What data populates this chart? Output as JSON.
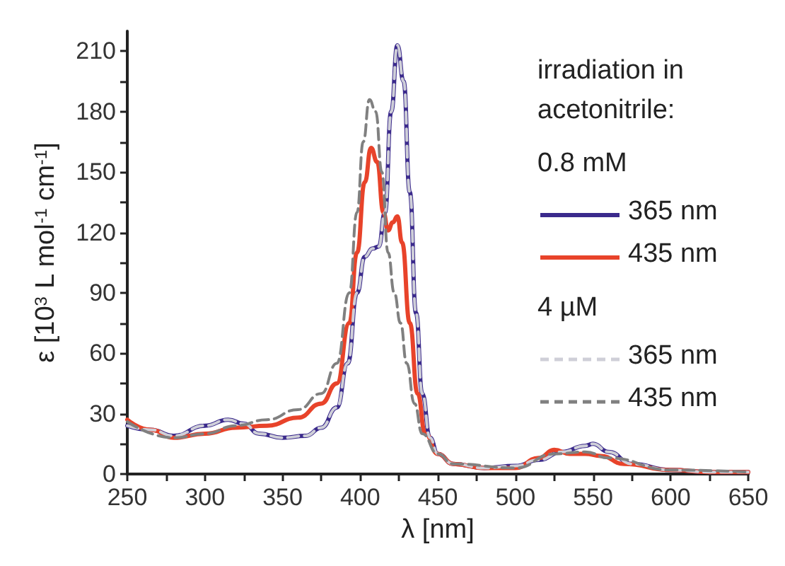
{
  "chart_data": {
    "type": "line",
    "xlabel": "λ [nm]",
    "ylabel": "ε [10$^{3}$ L mol$^{-1}$ cm$^{-1}$]",
    "legend_title": "irradiation in acetonitrile:",
    "annotations": [
      "0.8 mM",
      "4 µM"
    ],
    "legend": "right",
    "grid": false,
    "xlim": [
      250,
      650
    ],
    "xticks": [
      250,
      {
        "value": 275,
        "label": null
      },
      300,
      {
        "value": 325,
        "label": null
      },
      350,
      {
        "value": 375,
        "label": null
      },
      400,
      {
        "value": 425,
        "label": null
      },
      450,
      {
        "value": 475,
        "label": null
      },
      500,
      {
        "value": 525,
        "label": null
      },
      550,
      {
        "value": 575,
        "label": null
      },
      600,
      {
        "value": 625,
        "label": null
      },
      650
    ],
    "ylim": [
      0,
      220
    ],
    "yticks": [
      0,
      {
        "value": 15,
        "label": null
      },
      30,
      {
        "value": 45,
        "label": null
      },
      60,
      {
        "value": 75,
        "label": null
      },
      90,
      {
        "value": 105,
        "label": null
      },
      120,
      {
        "value": 135,
        "label": null
      },
      150,
      {
        "value": 165,
        "label": null
      },
      180,
      {
        "value": 195,
        "label": null
      },
      210
    ],
    "series": [
      {
        "name": "365 nm",
        "color": "#3b2a8c",
        "line_style": "solid",
        "x": [
          250,
          265,
          280,
          300,
          315,
          325,
          335,
          350,
          365,
          375,
          385,
          392,
          398,
          403,
          408,
          412,
          416,
          420,
          424,
          428,
          432,
          436,
          440,
          445,
          450,
          460,
          480,
          500,
          515,
          530,
          545,
          550,
          560,
          575,
          600,
          625,
          650
        ],
        "values": [
          24,
          22,
          19,
          24,
          27,
          25,
          20,
          18,
          19,
          23,
          33,
          55,
          90,
          108,
          112,
          113,
          130,
          180,
          213,
          195,
          140,
          80,
          40,
          18,
          10,
          5,
          3,
          4,
          7,
          11,
          14,
          15,
          11,
          5,
          2,
          1,
          1
        ]
      },
      {
        "name": "435 nm",
        "color": "#e8432a",
        "line_style": "solid",
        "x": [
          250,
          265,
          280,
          300,
          320,
          340,
          360,
          375,
          385,
          393,
          398,
          403,
          407,
          411,
          415,
          418,
          421,
          424,
          427,
          432,
          437,
          442,
          450,
          460,
          480,
          500,
          515,
          525,
          535,
          545,
          555,
          570,
          600,
          625,
          650
        ],
        "values": [
          27,
          22,
          18,
          20,
          23,
          24,
          28,
          35,
          45,
          75,
          110,
          145,
          162,
          155,
          130,
          121,
          125,
          128,
          115,
          75,
          40,
          20,
          10,
          5,
          3,
          3,
          8,
          12,
          10,
          10,
          9,
          5,
          2,
          1,
          1
        ]
      },
      {
        "name": "365 nm",
        "color": "#cfcfd8",
        "line_style": "dashed",
        "x": [
          250,
          265,
          280,
          300,
          315,
          325,
          335,
          350,
          365,
          375,
          385,
          392,
          398,
          403,
          408,
          412,
          416,
          420,
          424,
          428,
          432,
          436,
          440,
          445,
          450,
          460,
          480,
          500,
          515,
          530,
          545,
          550,
          560,
          575,
          600,
          625,
          650
        ],
        "values": [
          24,
          22,
          19,
          24,
          27,
          25,
          20,
          18,
          19,
          23,
          33,
          55,
          90,
          108,
          112,
          113,
          130,
          180,
          213,
          195,
          140,
          80,
          40,
          18,
          10,
          5,
          3,
          4,
          7,
          11,
          14,
          15,
          11,
          5,
          2,
          1,
          1
        ]
      },
      {
        "name": "435 nm",
        "color": "#808080",
        "line_style": "dashed",
        "x": [
          250,
          280,
          300,
          320,
          340,
          360,
          375,
          385,
          393,
          398,
          402,
          406,
          410,
          414,
          418,
          422,
          426,
          430,
          435,
          440,
          450,
          460,
          500,
          525,
          545,
          560,
          600,
          650
        ],
        "values": [
          26,
          18,
          20,
          24,
          27,
          32,
          40,
          55,
          90,
          130,
          165,
          186,
          180,
          150,
          110,
          90,
          75,
          55,
          35,
          20,
          10,
          5,
          3,
          10,
          11,
          8,
          2,
          1
        ]
      }
    ]
  }
}
